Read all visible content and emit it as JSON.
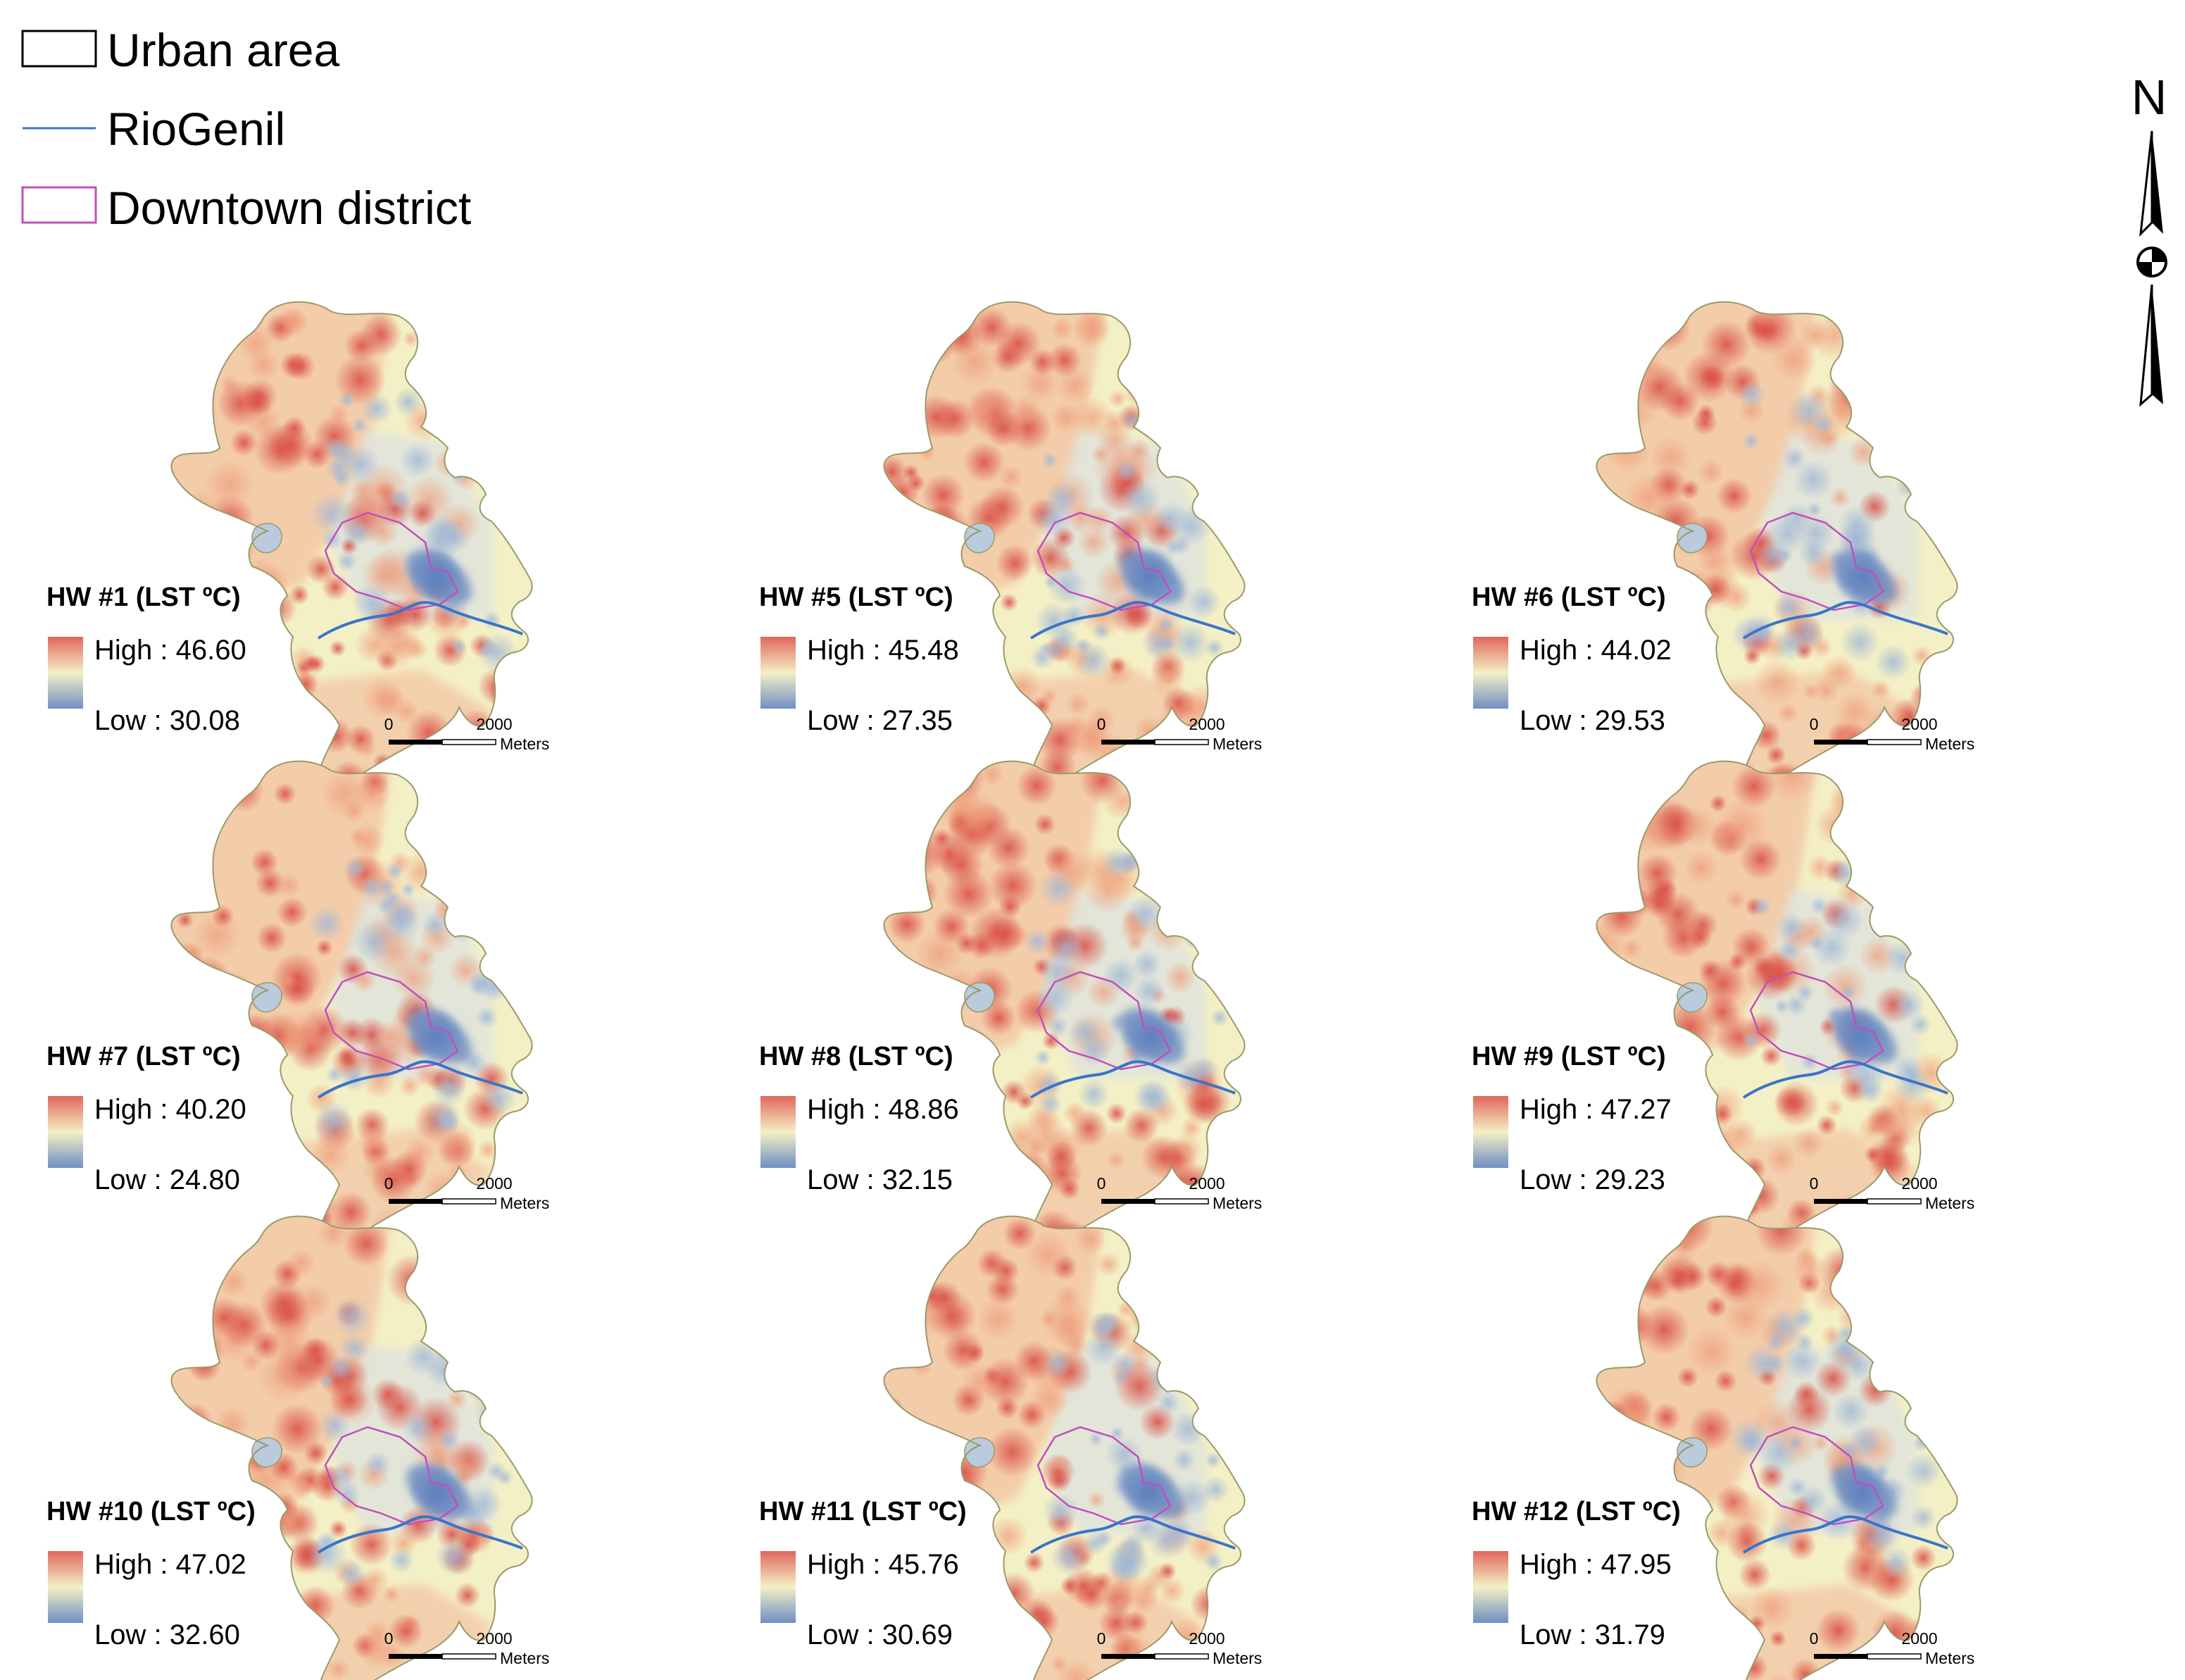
{
  "legend": {
    "items": [
      {
        "label": "Urban area",
        "kind": "box",
        "color": "#000000"
      },
      {
        "label": "RioGenil",
        "kind": "line",
        "color": "#3a74c9"
      },
      {
        "label": "Downtown district",
        "kind": "box",
        "color": "#c24fb9"
      }
    ]
  },
  "north_arrow": {
    "label": "N"
  },
  "colors": {
    "hot": "#e0675c",
    "warm": "#f1b08f",
    "neutral": "#f4f0c6",
    "cool": "#b9cbdc",
    "cold": "#6f8fc3",
    "river": "#3a74c9",
    "downtown": "#c24fb9",
    "outline": "#9a9a6a"
  },
  "scale_bar": {
    "start": "0",
    "end": "2000",
    "unit": "Meters"
  },
  "panels": [
    {
      "title": "HW #1 (LST ºC)",
      "high": "High : 46.60",
      "low": "Low : 30.08"
    },
    {
      "title": "HW #5 (LST ºC)",
      "high": "High : 45.48",
      "low": "Low : 27.35"
    },
    {
      "title": "HW #6 (LST ºC)",
      "high": "High : 44.02",
      "low": "Low : 29.53"
    },
    {
      "title": "HW #7 (LST ºC)",
      "high": "High : 40.20",
      "low": "Low : 24.80"
    },
    {
      "title": "HW #8 (LST ºC)",
      "high": "High : 48.86",
      "low": "Low : 32.15"
    },
    {
      "title": "HW #9 (LST ºC)",
      "high": "High : 47.27",
      "low": "Low : 29.23"
    },
    {
      "title": "HW #10 (LST ºC)",
      "high": "High : 47.02",
      "low": "Low : 32.60"
    },
    {
      "title": "HW #11 (LST ºC)",
      "high": "High : 45.76",
      "low": "Low : 30.69"
    },
    {
      "title": "HW #12 (LST ºC)",
      "high": "High : 47.95",
      "low": "Low : 31.79"
    }
  ]
}
